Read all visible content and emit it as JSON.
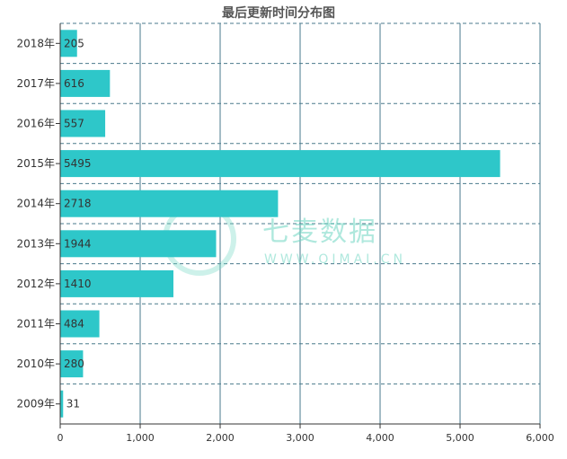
{
  "chart_data": {
    "type": "bar",
    "orientation": "horizontal",
    "title": "最后更新时间分布图",
    "categories": [
      "2018年",
      "2017年",
      "2016年",
      "2015年",
      "2014年",
      "2013年",
      "2012年",
      "2011年",
      "2010年",
      "2009年"
    ],
    "values": [
      205,
      616,
      557,
      5495,
      2718,
      1944,
      1410,
      484,
      280,
      31
    ],
    "xlim": [
      0,
      6000
    ],
    "xticks": [
      0,
      1000,
      2000,
      3000,
      4000,
      5000,
      6000
    ],
    "xtick_labels": [
      "0",
      "1,000",
      "2,000",
      "3,000",
      "4,000",
      "5,000",
      "6,000"
    ],
    "grid": true,
    "bar_color": "#2ec7c9",
    "grid_color": "#4a7a8c"
  },
  "watermark": {
    "text": "七麦数据",
    "subtext": "WWW.QIMAI.CN"
  }
}
